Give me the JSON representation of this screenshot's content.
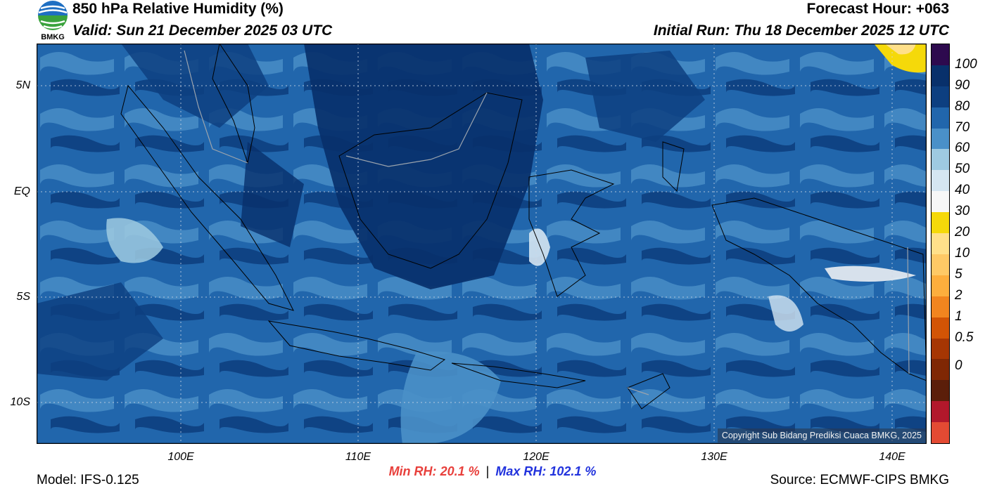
{
  "header": {
    "title": "850 hPa Relative Humidity (%)",
    "valid": "Valid: Sun 21 December 2025 03 UTC",
    "forecast_hour": "Forecast Hour: +063",
    "initial_run": "Initial Run: Thu 18 December 2025 12 UTC"
  },
  "logo": {
    "text": "BMKG",
    "icon": "bmkg-logo-icon"
  },
  "map": {
    "lat_labels": [
      "5N",
      "EQ",
      "5S",
      "10S"
    ],
    "lon_labels": [
      "100E",
      "110E",
      "120E",
      "130E",
      "140E"
    ],
    "copyright": "Copyright Sub Bidang Prediksi Cuaca BMKG, 2025"
  },
  "colorbar": {
    "labels": [
      "100",
      "90",
      "80",
      "70",
      "60",
      "50",
      "40",
      "30",
      "20",
      "10",
      "5",
      "2",
      "1",
      "0.5",
      "0"
    ],
    "colors": [
      "#2d0a4e",
      "#08306b",
      "#0d3f80",
      "#2166ac",
      "#4a90c8",
      "#9ecae1",
      "#d5e6f2",
      "#f7f7f7",
      "#f5d90a",
      "#ffe08a",
      "#fec966",
      "#fdae3d",
      "#f2851f",
      "#d25405",
      "#a63603",
      "#7f2704",
      "#5b1e0a",
      "#b2182b",
      "#e34a33"
    ]
  },
  "stats": {
    "min_label": "Min RH:",
    "min_value": "20.1 %",
    "separator": "|",
    "max_label": "Max RH:",
    "max_value": "102.1 %"
  },
  "footer": {
    "model": "Model: IFS-0.125",
    "source": "Source: ECMWF-CIPS BMKG"
  }
}
